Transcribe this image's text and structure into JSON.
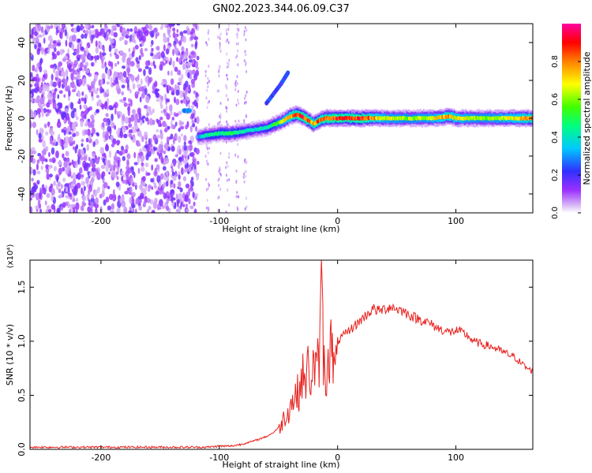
{
  "title": "GN02.2023.344.06.09.C37",
  "colors": {
    "snr_line": "#e8201c",
    "axis": "#000000"
  },
  "chart_data": [
    {
      "id": "spectrogram",
      "type": "heatmap",
      "xlabel": "Height of straight line (km)",
      "ylabel": "Frequency (Hz)",
      "xlim": [
        -260,
        165
      ],
      "ylim": [
        -50,
        50
      ],
      "xticks": [
        -200,
        -100,
        0,
        100
      ],
      "yticks": [
        -40,
        -20,
        0,
        20,
        40
      ],
      "grid": false,
      "colorbar": {
        "label": "Normalized spectral amplitude",
        "range": [
          0.0,
          1.0
        ],
        "ticks": [
          0.0,
          0.2,
          0.4,
          0.6,
          0.8
        ],
        "colormap": "rainbow"
      },
      "noise_region_x": [
        -260,
        -118
      ],
      "sparse_streaks_x": [
        -110,
        -100,
        -93,
        -85,
        -78
      ],
      "ridge": {
        "x": [
          -118,
          -110,
          -100,
          -90,
          -80,
          -70,
          -60,
          -52,
          -45,
          -40,
          -35,
          -30,
          -25,
          -20,
          -15,
          -10,
          0,
          10,
          20,
          40,
          60,
          80,
          95,
          100,
          110,
          120,
          140,
          165
        ],
        "y": [
          -10,
          -9,
          -8,
          -8,
          -7,
          -6,
          -5,
          -3,
          -1,
          1,
          2,
          1,
          -1,
          -3,
          -1,
          0,
          0,
          0,
          0,
          0,
          0,
          0,
          1,
          0,
          0,
          0,
          0,
          0
        ],
        "amplitude": [
          0.35,
          0.45,
          0.5,
          0.55,
          0.45,
          0.4,
          0.45,
          0.55,
          0.7,
          0.85,
          0.9,
          0.95,
          0.9,
          0.85,
          0.9,
          0.9,
          0.95,
          0.9,
          0.95,
          0.7,
          0.65,
          0.7,
          0.85,
          0.75,
          0.7,
          0.65,
          0.7,
          0.85
        ]
      },
      "secondary_features": [
        {
          "x": [
            -130,
            -125
          ],
          "y": [
            4,
            4
          ],
          "amplitude": 0.35
        },
        {
          "x": [
            -60,
            -48,
            -42
          ],
          "y": [
            8,
            18,
            24
          ],
          "amplitude": 0.25
        }
      ]
    },
    {
      "id": "snr",
      "type": "line",
      "xlabel": "Height of straight line (km)",
      "ylabel": "SNR (10 * v/v)",
      "multiplier": "(x10⁴)",
      "xlim": [
        -260,
        165
      ],
      "ylim": [
        0.0,
        1.75
      ],
      "xticks": [
        -200,
        -100,
        0,
        100
      ],
      "yticks": [
        0.0,
        0.5,
        1.0,
        1.5
      ],
      "grid": false,
      "series": [
        {
          "values_unit": "x10^4",
          "x": [
            -260,
            -240,
            -220,
            -200,
            -180,
            -160,
            -140,
            -120,
            -110,
            -100,
            -90,
            -80,
            -70,
            -65,
            -60,
            -55,
            -50,
            -48,
            -45,
            -42,
            -40,
            -38,
            -35,
            -32,
            -30,
            -28,
            -25,
            -22,
            -20,
            -18,
            -15,
            -13,
            -12,
            -10,
            -8,
            -5,
            -2,
            0,
            5,
            10,
            15,
            20,
            25,
            30,
            35,
            40,
            45,
            50,
            55,
            60,
            65,
            70,
            75,
            80,
            85,
            90,
            95,
            100,
            105,
            110,
            115,
            120,
            130,
            140,
            150,
            155,
            160,
            165
          ],
          "y": [
            0.02,
            0.02,
            0.02,
            0.02,
            0.02,
            0.02,
            0.02,
            0.02,
            0.02,
            0.03,
            0.03,
            0.05,
            0.08,
            0.1,
            0.12,
            0.15,
            0.2,
            0.22,
            0.3,
            0.35,
            0.4,
            0.45,
            0.5,
            0.55,
            0.7,
            0.6,
            0.75,
            0.65,
            0.8,
            0.7,
            0.9,
            1.75,
            0.85,
            0.6,
            0.9,
            0.95,
            0.65,
            1.0,
            1.05,
            1.1,
            1.15,
            1.2,
            1.25,
            1.3,
            1.28,
            1.3,
            1.32,
            1.3,
            1.28,
            1.25,
            1.22,
            1.2,
            1.18,
            1.15,
            1.12,
            1.1,
            1.08,
            1.1,
            1.08,
            1.05,
            1.0,
            0.98,
            0.95,
            0.9,
            0.85,
            0.8,
            0.75,
            0.72
          ]
        }
      ]
    }
  ]
}
